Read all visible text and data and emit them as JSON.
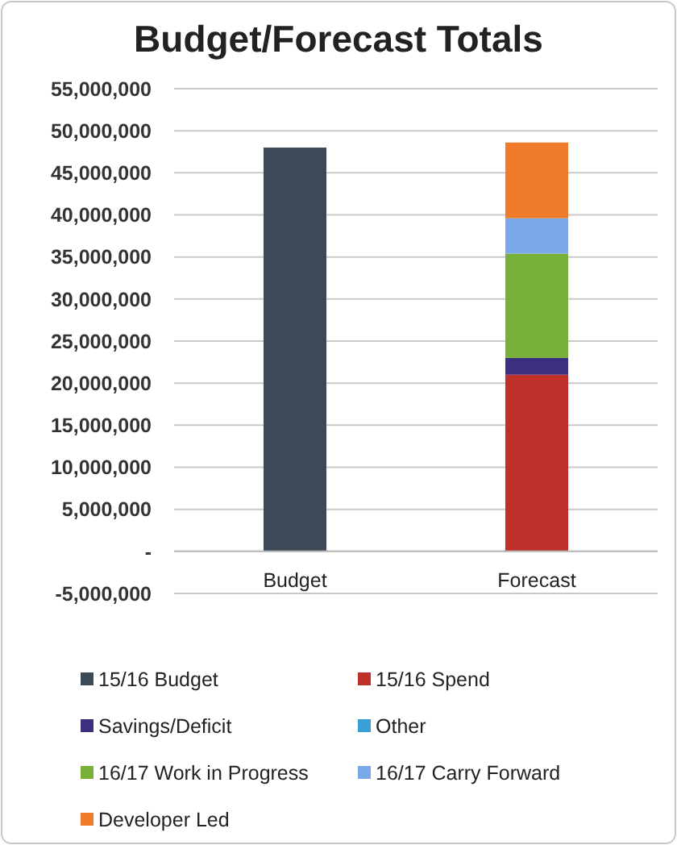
{
  "chart_data": {
    "type": "bar",
    "title": "Budget/Forecast Totals",
    "categories": [
      "Budget",
      "Forecast"
    ],
    "stacked": true,
    "legend": "bottom",
    "grid": "y",
    "ylim": [
      -5000000,
      55000000
    ],
    "yticks": [
      {
        "value": -5000000,
        "label": "-5,000,000"
      },
      {
        "value": 0,
        "label": "-"
      },
      {
        "value": 5000000,
        "label": "5,000,000"
      },
      {
        "value": 10000000,
        "label": "10,000,000"
      },
      {
        "value": 15000000,
        "label": "15,000,000"
      },
      {
        "value": 20000000,
        "label": "20,000,000"
      },
      {
        "value": 25000000,
        "label": "25,000,000"
      },
      {
        "value": 30000000,
        "label": "30,000,000"
      },
      {
        "value": 35000000,
        "label": "35,000,000"
      },
      {
        "value": 40000000,
        "label": "40,000,000"
      },
      {
        "value": 45000000,
        "label": "45,000,000"
      },
      {
        "value": 50000000,
        "label": "50,000,000"
      },
      {
        "value": 55000000,
        "label": "55,000,000"
      }
    ],
    "series": [
      {
        "name": "15/16 Budget",
        "color": "#3b4a56",
        "values": [
          48000000,
          null
        ]
      },
      {
        "name": "15/16 Spend",
        "color": "#c0302a",
        "values": [
          null,
          21000000
        ]
      },
      {
        "name": "Savings/Deficit",
        "color": "#3c2f80",
        "values": [
          null,
          2000000
        ]
      },
      {
        "name": "Other",
        "color": "#3a9fd6",
        "values": [
          null,
          null
        ]
      },
      {
        "name": "16/17 Work in Progress",
        "color": "#79b03a",
        "values": [
          null,
          12400000
        ]
      },
      {
        "name": "16/17 Carry Forward",
        "color": "#7aa8e8",
        "values": [
          null,
          4200000
        ]
      },
      {
        "name": "Developer Led",
        "color": "#ee7a2a",
        "values": [
          null,
          9000000
        ]
      }
    ]
  }
}
